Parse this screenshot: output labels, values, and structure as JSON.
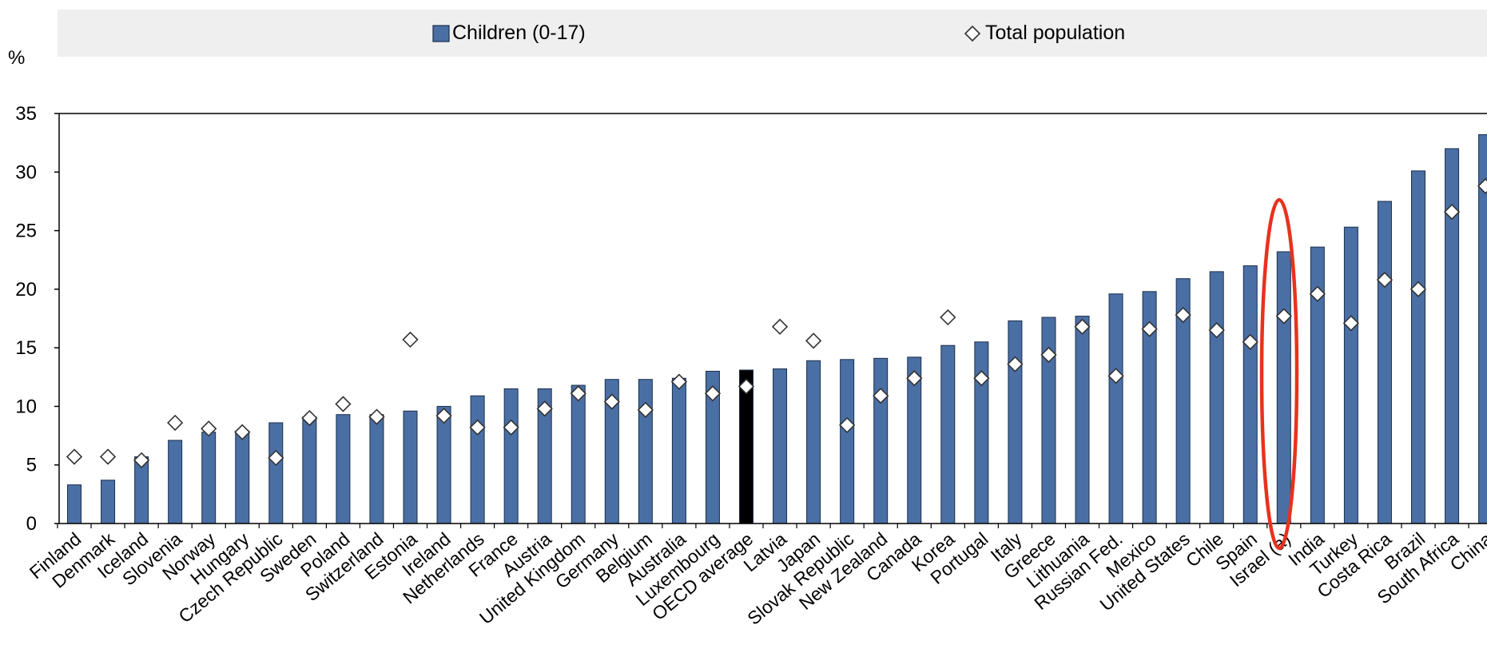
{
  "chart_data": {
    "type": "bar",
    "ylabel": "%",
    "ylim": [
      0,
      35
    ],
    "yticks": [
      "0",
      "5",
      "10",
      "15",
      "20",
      "25",
      "30",
      "35"
    ],
    "legend": {
      "position": "top",
      "entries": [
        {
          "name": "Children (0-17)",
          "marker": "bar"
        },
        {
          "name": "Total population",
          "marker": "diamond"
        }
      ]
    },
    "categories": [
      "Finland",
      "Denmark",
      "Iceland",
      "Slovenia",
      "Norway",
      "Hungary",
      "Czech Republic",
      "Sweden",
      "Poland",
      "Switzerland",
      "Estonia",
      "Ireland",
      "Netherlands",
      "France",
      "Austria",
      "United Kingdom",
      "Germany",
      "Belgium",
      "Australia",
      "Luxembourg",
      "OECD average",
      "Latvia",
      "Japan",
      "Slovak Republic",
      "New Zealand",
      "Canada",
      "Korea",
      "Portugal",
      "Italy",
      "Greece",
      "Lithuania",
      "Russian Fed.",
      "Mexico",
      "United States",
      "Chile",
      "Spain",
      "Israel (a)",
      "India",
      "Turkey",
      "Costa Rica",
      "Brazil",
      "South Africa",
      "China"
    ],
    "series": [
      {
        "name": "Children (0-17)",
        "kind": "bar",
        "values": [
          3.3,
          3.7,
          5.7,
          7.1,
          7.8,
          7.9,
          8.6,
          9.1,
          9.3,
          9.3,
          9.6,
          10.0,
          10.9,
          11.5,
          11.5,
          11.8,
          12.3,
          12.3,
          12.4,
          13.0,
          13.1,
          13.2,
          13.9,
          14.0,
          14.1,
          14.2,
          15.2,
          15.5,
          17.3,
          17.6,
          17.7,
          19.6,
          19.8,
          20.9,
          21.5,
          22.0,
          23.2,
          23.6,
          25.3,
          27.5,
          30.1,
          32.0,
          33.2
        ],
        "highlight": {
          "OECD average": "#000000"
        }
      },
      {
        "name": "Total population",
        "kind": "diamond",
        "values": [
          5.7,
          5.7,
          5.4,
          8.6,
          8.1,
          7.8,
          5.6,
          9.0,
          10.2,
          9.1,
          15.7,
          9.2,
          8.2,
          8.2,
          9.8,
          11.1,
          10.4,
          9.7,
          12.1,
          11.1,
          11.7,
          16.8,
          15.6,
          8.4,
          10.9,
          12.4,
          17.6,
          12.4,
          13.6,
          14.4,
          16.8,
          12.6,
          16.6,
          17.8,
          16.5,
          15.5,
          17.7,
          19.6,
          17.1,
          20.8,
          20.0,
          26.6,
          28.8
        ]
      }
    ],
    "annotation": {
      "type": "ellipse",
      "target": "Israel (a)",
      "color": "#e8321e"
    },
    "colors": {
      "bar": "#4a6fa5",
      "bar_border": "#1a2e4a",
      "highlight": "#000000",
      "legend_bg": "#efefef",
      "diamond_fill": "#ffffff",
      "annotation": "#e8321e"
    },
    "grid": false
  }
}
